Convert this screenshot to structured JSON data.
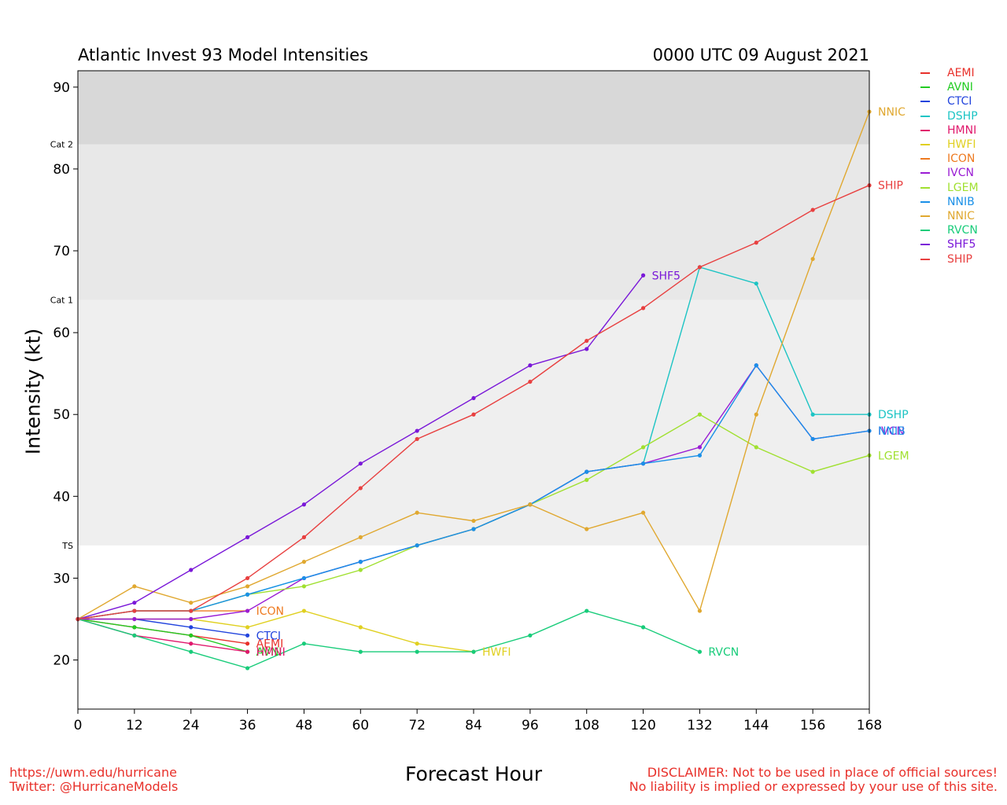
{
  "header": {
    "title_left": "Atlantic Invest 93 Model Intensities",
    "title_right": "0000 UTC 09 August 2021"
  },
  "footer": {
    "url": "https://uwm.edu/hurricane",
    "twitter": "Twitter: @HurricaneModels",
    "disclaimer_line1": "DISCLAIMER: Not to be used in place of official sources!",
    "disclaimer_line2": "No liability is implied or expressed by your use of this site."
  },
  "chart_data": {
    "type": "line",
    "xlabel": "Forecast Hour",
    "ylabel": "Intensity (kt)",
    "xlim": [
      0,
      168
    ],
    "ylim": [
      14,
      92
    ],
    "xticks": [
      0,
      12,
      24,
      36,
      48,
      60,
      72,
      84,
      96,
      108,
      120,
      132,
      144,
      156,
      168
    ],
    "yticks": [
      20,
      30,
      40,
      50,
      60,
      70,
      80,
      90
    ],
    "bands": [
      {
        "label": "TS",
        "from": 34,
        "to": 64,
        "color": "#efefef"
      },
      {
        "label": "Cat 1",
        "from": 64,
        "to": 83,
        "color": "#e8e8e8"
      },
      {
        "label": "Cat 2",
        "from": 83,
        "to": 92,
        "color": "#d8d8d8"
      }
    ],
    "legend_position": "right, outside plot",
    "series": [
      {
        "name": "AEMI",
        "color": "#e8302a",
        "x": [
          0,
          12,
          24,
          36
        ],
        "y": [
          25,
          24,
          23,
          22
        ]
      },
      {
        "name": "AVNI",
        "color": "#22cc22",
        "x": [
          0,
          12,
          24,
          36
        ],
        "y": [
          25,
          24,
          23,
          21
        ]
      },
      {
        "name": "CTCI",
        "color": "#2244dd",
        "x": [
          0,
          12,
          24,
          36
        ],
        "y": [
          25,
          25,
          24,
          23
        ]
      },
      {
        "name": "DSHP",
        "color": "#1cc4c4",
        "x": [
          0,
          12,
          24,
          36,
          48,
          60,
          72,
          84,
          96,
          108,
          120,
          132,
          144,
          156,
          168
        ],
        "y": [
          25,
          26,
          26,
          28,
          30,
          32,
          34,
          36,
          39,
          43,
          44,
          68,
          66,
          50,
          50
        ]
      },
      {
        "name": "HMNI",
        "color": "#e0186c",
        "x": [
          0,
          12,
          24,
          36
        ],
        "y": [
          25,
          23,
          22,
          21
        ]
      },
      {
        "name": "HWFI",
        "color": "#e0d020",
        "x": [
          0,
          12,
          24,
          36,
          48,
          60,
          72,
          84
        ],
        "y": [
          25,
          25,
          25,
          24,
          26,
          24,
          22,
          21
        ]
      },
      {
        "name": "ICON",
        "color": "#ee7a20",
        "x": [
          0,
          12,
          24,
          36
        ],
        "y": [
          25,
          26,
          26,
          26
        ]
      },
      {
        "name": "IVCN",
        "color": "#9a1cd4",
        "x": [
          0,
          12,
          24,
          36,
          48,
          60,
          72,
          84,
          96,
          108,
          120,
          132,
          144,
          156,
          168
        ],
        "y": [
          25,
          25,
          25,
          26,
          30,
          32,
          34,
          36,
          39,
          43,
          44,
          46,
          56,
          47,
          48
        ]
      },
      {
        "name": "LGEM",
        "color": "#a0e030",
        "x": [
          0,
          12,
          24,
          36,
          48,
          60,
          72,
          84,
          96,
          108,
          120,
          132,
          144,
          156,
          168
        ],
        "y": [
          25,
          26,
          26,
          28,
          29,
          31,
          34,
          36,
          39,
          42,
          46,
          50,
          46,
          43,
          45
        ]
      },
      {
        "name": "NNIB",
        "color": "#1a90e8",
        "x": [
          0,
          12,
          24,
          36,
          48,
          60,
          72,
          84,
          96,
          108,
          120,
          132,
          144,
          156,
          168
        ],
        "y": [
          25,
          26,
          26,
          28,
          30,
          32,
          34,
          36,
          39,
          43,
          44,
          45,
          56,
          47,
          48
        ]
      },
      {
        "name": "NNIC",
        "color": "#e0a830",
        "x": [
          0,
          12,
          24,
          36,
          48,
          60,
          72,
          84,
          96,
          108,
          120,
          132,
          144,
          156,
          168
        ],
        "y": [
          25,
          29,
          27,
          29,
          32,
          35,
          38,
          37,
          39,
          36,
          38,
          26,
          50,
          69,
          87
        ]
      },
      {
        "name": "RVCN",
        "color": "#18cc7a",
        "x": [
          0,
          12,
          24,
          36,
          48,
          60,
          72,
          84,
          96,
          108,
          120,
          132
        ],
        "y": [
          25,
          23,
          21,
          19,
          22,
          21,
          21,
          21,
          23,
          26,
          24,
          21
        ]
      },
      {
        "name": "SHF5",
        "color": "#7a18d8",
        "x": [
          0,
          12,
          24,
          36,
          48,
          60,
          72,
          84,
          96,
          108,
          120
        ],
        "y": [
          25,
          27,
          31,
          35,
          39,
          44,
          48,
          52,
          56,
          58,
          67
        ]
      },
      {
        "name": "SHIP",
        "color": "#e84040",
        "x": [
          0,
          12,
          24,
          36,
          48,
          60,
          72,
          84,
          96,
          108,
          120,
          132,
          144,
          156,
          168
        ],
        "y": [
          25,
          26,
          26,
          30,
          35,
          41,
          47,
          50,
          54,
          59,
          63,
          68,
          71,
          75,
          78
        ]
      }
    ]
  }
}
